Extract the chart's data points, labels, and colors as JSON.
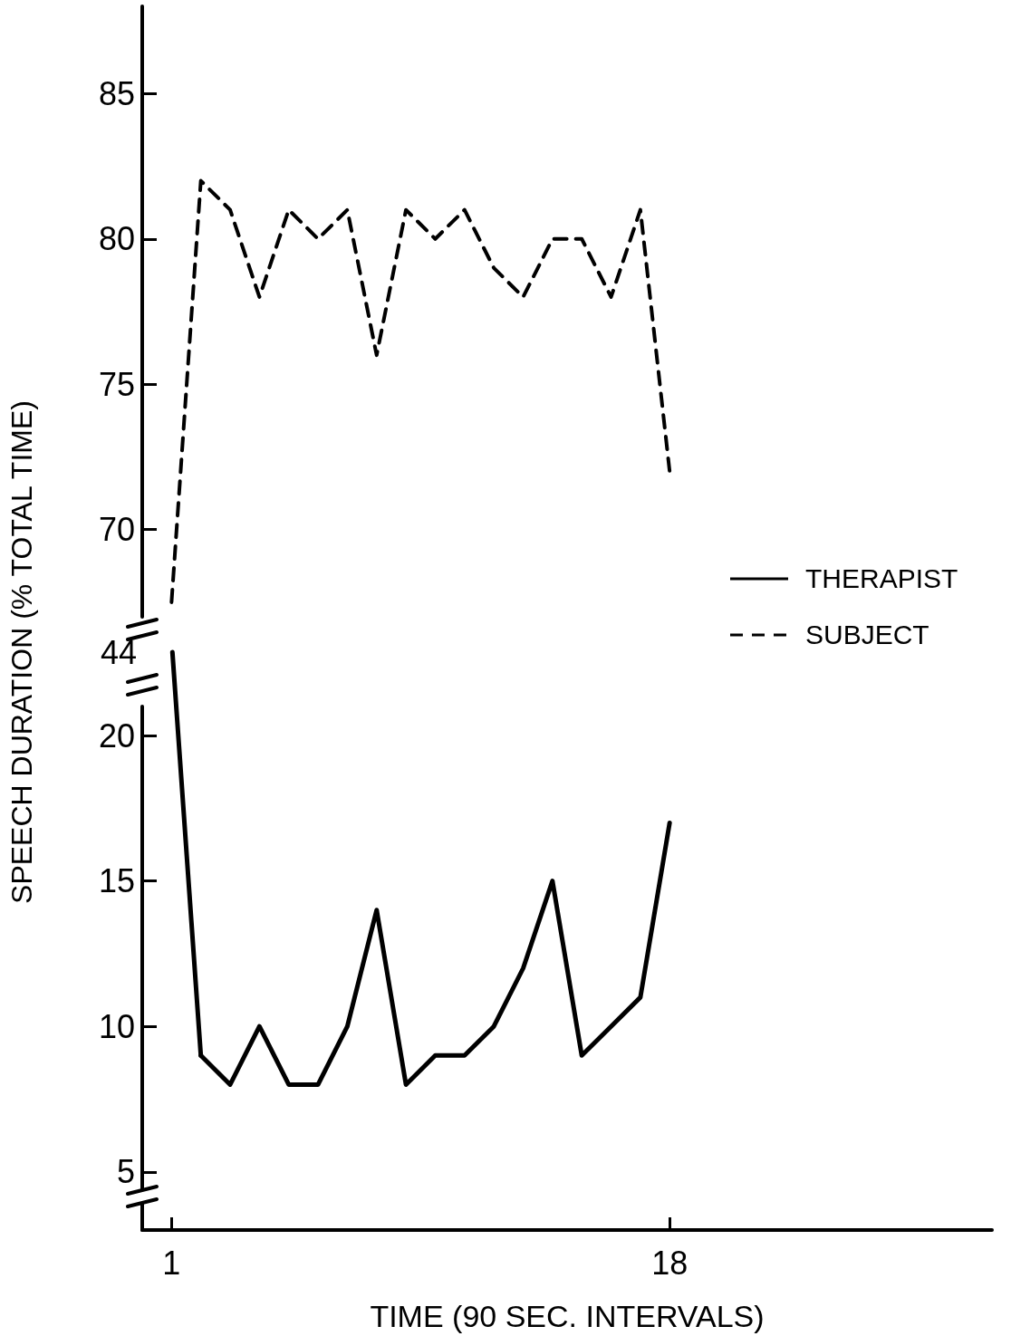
{
  "chart_data": [
    {
      "type": "line",
      "x": [
        1,
        2,
        3,
        4,
        5,
        6,
        7,
        8,
        9,
        10,
        11,
        12,
        13,
        14,
        15,
        16,
        17,
        18
      ],
      "ylim": [
        67,
        88
      ],
      "yticks": [
        70,
        75,
        80,
        85
      ],
      "tick_labels": "y",
      "grid": false,
      "legend": "right",
      "marker": "none",
      "series": [
        {
          "name": "SUBJECT",
          "color": "#000000",
          "line_style": "dashed",
          "values": [
            67.5,
            82,
            81,
            78,
            81,
            80,
            81,
            76,
            81,
            80,
            81,
            79,
            78,
            80,
            80,
            78,
            81,
            72
          ]
        }
      ]
    },
    {
      "type": "other",
      "ylabel": "SPEECH DURATION (% TOTAL TIME)",
      "annotations": [
        "44"
      ]
    },
    {
      "type": "line",
      "x": [
        2,
        3,
        4,
        5,
        6,
        7,
        8,
        9,
        10,
        11,
        12,
        13,
        14,
        15,
        16,
        17,
        18
      ],
      "xlim": [
        0,
        29
      ],
      "xticks": [
        1,
        18
      ],
      "ylim": [
        3,
        21
      ],
      "yticks": [
        5,
        10,
        15,
        20
      ],
      "grid": false,
      "legend": "right",
      "marker": "none",
      "xlabel": "TIME (90 SEC. INTERVALS)",
      "series": [
        {
          "name": "THERAPIST",
          "color": "#000000",
          "line_style": "solid",
          "values": [
            9,
            8,
            10,
            8,
            8,
            10,
            14,
            8,
            9,
            9,
            10,
            12,
            15,
            9,
            10,
            11,
            17
          ]
        }
      ]
    }
  ]
}
